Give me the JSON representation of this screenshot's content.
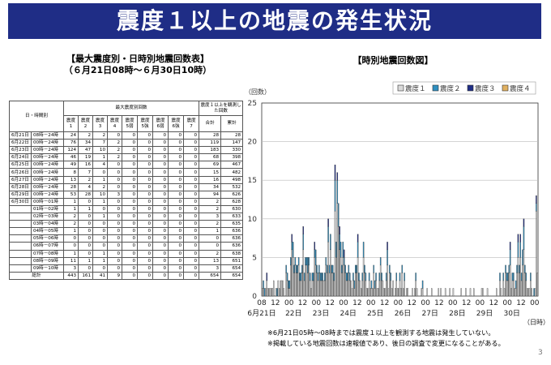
{
  "page": {
    "title": "震度１以上の地震の発生状況",
    "table_heading_line1": "【最大震度別・日時別地震回数表】",
    "table_heading_line2": "（６月21日08時～６月30日10時）",
    "chart_heading": "【時別地震回数図】",
    "notes": [
      "※6月21日05時～08時までは震度１以上を観測する地震は発生していない。",
      "※掲載している地震回数は速報値であり、後日の調査で変更になることがある。"
    ],
    "page_number": "3"
  },
  "table": {
    "col_date_time": "日・時間別",
    "col_group": "最大震度別回数",
    "col_observed": "震度１以上を観測した回数",
    "col_intensity_top": [
      "震度",
      "震度",
      "震度",
      "震度",
      "震度",
      "震度",
      "震度",
      "震度",
      "震度"
    ],
    "col_intensity_bottom": [
      "1",
      "2",
      "3",
      "4",
      "5弱",
      "5強",
      "6弱",
      "6強",
      "7"
    ],
    "col_total": "合計",
    "col_cumulative": "累計",
    "rows": [
      {
        "date": "6月21日",
        "time": "08時－24時",
        "v": [
          "24",
          "2",
          "2",
          "0",
          "0",
          "0",
          "0",
          "0",
          "0"
        ],
        "total": "28",
        "cum": "28"
      },
      {
        "date": "6月22日",
        "time": "00時－24時",
        "v": [
          "76",
          "34",
          "7",
          "2",
          "0",
          "0",
          "0",
          "0",
          "0"
        ],
        "total": "119",
        "cum": "147"
      },
      {
        "date": "6月23日",
        "time": "00時－24時",
        "v": [
          "124",
          "47",
          "10",
          "2",
          "0",
          "0",
          "0",
          "0",
          "0"
        ],
        "total": "183",
        "cum": "330"
      },
      {
        "date": "6月24日",
        "time": "00時－24時",
        "v": [
          "46",
          "19",
          "1",
          "2",
          "0",
          "0",
          "0",
          "0",
          "0"
        ],
        "total": "68",
        "cum": "398"
      },
      {
        "date": "6月25日",
        "time": "00時－24時",
        "v": [
          "49",
          "16",
          "4",
          "0",
          "0",
          "0",
          "0",
          "0",
          "0"
        ],
        "total": "69",
        "cum": "467"
      },
      {
        "date": "6月26日",
        "time": "00時－24時",
        "v": [
          "8",
          "7",
          "0",
          "0",
          "0",
          "0",
          "0",
          "0",
          "0"
        ],
        "total": "15",
        "cum": "482"
      },
      {
        "date": "6月27日",
        "time": "00時－24時",
        "v": [
          "13",
          "2",
          "1",
          "0",
          "0",
          "0",
          "0",
          "0",
          "0"
        ],
        "total": "16",
        "cum": "498"
      },
      {
        "date": "6月28日",
        "time": "00時－24時",
        "v": [
          "28",
          "4",
          "2",
          "0",
          "0",
          "0",
          "0",
          "0",
          "0"
        ],
        "total": "34",
        "cum": "532"
      },
      {
        "date": "6月29日",
        "time": "00時－24時",
        "v": [
          "53",
          "28",
          "10",
          "3",
          "0",
          "0",
          "0",
          "0",
          "0"
        ],
        "total": "94",
        "cum": "626"
      },
      {
        "date": "6月30日",
        "time": "00時－01時",
        "v": [
          "1",
          "0",
          "1",
          "0",
          "0",
          "0",
          "0",
          "0",
          "0"
        ],
        "total": "2",
        "cum": "628"
      },
      {
        "date": "",
        "time": "01時－02時",
        "v": [
          "1",
          "1",
          "0",
          "0",
          "0",
          "0",
          "0",
          "0",
          "0"
        ],
        "total": "2",
        "cum": "630"
      },
      {
        "date": "",
        "time": "02時－03時",
        "v": [
          "2",
          "0",
          "1",
          "0",
          "0",
          "0",
          "0",
          "0",
          "0"
        ],
        "total": "3",
        "cum": "633"
      },
      {
        "date": "",
        "time": "03時－04時",
        "v": [
          "2",
          "0",
          "0",
          "0",
          "0",
          "0",
          "0",
          "0",
          "0"
        ],
        "total": "2",
        "cum": "635"
      },
      {
        "date": "",
        "time": "04時－05時",
        "v": [
          "1",
          "0",
          "0",
          "0",
          "0",
          "0",
          "0",
          "0",
          "0"
        ],
        "total": "1",
        "cum": "636"
      },
      {
        "date": "",
        "time": "05時－06時",
        "v": [
          "0",
          "0",
          "0",
          "0",
          "0",
          "0",
          "0",
          "0",
          "0"
        ],
        "total": "0",
        "cum": "636"
      },
      {
        "date": "",
        "time": "06時－07時",
        "v": [
          "0",
          "0",
          "0",
          "0",
          "0",
          "0",
          "0",
          "0",
          "0"
        ],
        "total": "0",
        "cum": "636"
      },
      {
        "date": "",
        "time": "07時－08時",
        "v": [
          "1",
          "0",
          "1",
          "0",
          "0",
          "0",
          "0",
          "0",
          "0"
        ],
        "total": "2",
        "cum": "638"
      },
      {
        "date": "",
        "time": "08時－09時",
        "v": [
          "11",
          "1",
          "1",
          "0",
          "0",
          "0",
          "0",
          "0",
          "0"
        ],
        "total": "13",
        "cum": "651"
      },
      {
        "date": "",
        "time": "09時－10時",
        "v": [
          "3",
          "0",
          "0",
          "0",
          "0",
          "0",
          "0",
          "0",
          "0"
        ],
        "total": "3",
        "cum": "654"
      }
    ],
    "total_row": {
      "label": "総計",
      "v": [
        "443",
        "161",
        "41",
        "9",
        "0",
        "0",
        "0",
        "0",
        "0"
      ],
      "total": "654",
      "cum": "654"
    }
  },
  "chart_data": {
    "type": "bar",
    "stacked": true,
    "ylabel": "（回数）",
    "xlabel_unit": "（日時）",
    "ylim": [
      0,
      25
    ],
    "yticks": [
      0,
      5,
      10,
      15,
      20,
      25
    ],
    "grid": true,
    "legend_position": "top-right",
    "hour_labels": [
      "08",
      "12",
      "00",
      "12",
      "00",
      "12",
      "00",
      "12",
      "00",
      "12",
      "00",
      "12",
      "00",
      "12",
      "00",
      "12",
      "00",
      "12",
      "00",
      "12",
      "00"
    ],
    "day_labels": [
      "6月21日",
      "22日",
      "23日",
      "24日",
      "25日",
      "26日",
      "27日",
      "28日",
      "29日",
      "30日"
    ],
    "x_start": "6月21日 08時",
    "x_end": "6月30日 10時",
    "series": [
      {
        "name": "震度１",
        "color": "#d9d9d9",
        "values": [
          1,
          1,
          0,
          1,
          2,
          1,
          1,
          1,
          1,
          1,
          2,
          0,
          1,
          0,
          2,
          1,
          2,
          2,
          2,
          1,
          0,
          3,
          2,
          1,
          1,
          4,
          6,
          5,
          3,
          4,
          3,
          3,
          4,
          2,
          2,
          3,
          6,
          2,
          4,
          4,
          3,
          4,
          2,
          1,
          2,
          2,
          5,
          4,
          3,
          2,
          3,
          2,
          2,
          2,
          2,
          2,
          4,
          3,
          7,
          3,
          6,
          3,
          3,
          2,
          11,
          5,
          12,
          9,
          6,
          5,
          3,
          5,
          4,
          3,
          2,
          2,
          3,
          2,
          2,
          1,
          2,
          1,
          3,
          3,
          5,
          2,
          2,
          1,
          2,
          5,
          3,
          2,
          1,
          1,
          2,
          1,
          1,
          1,
          3,
          1,
          2,
          1,
          1,
          2,
          4,
          2,
          2,
          1,
          1,
          2,
          4,
          1,
          3,
          2,
          1,
          2,
          0,
          1,
          2,
          1,
          1,
          2,
          1,
          3,
          1,
          2,
          0,
          1,
          1,
          0,
          0,
          0,
          1,
          0,
          1,
          2,
          1,
          0,
          0,
          0,
          1,
          1,
          0,
          0,
          0,
          1,
          0,
          0,
          0,
          1,
          0,
          0,
          0,
          0,
          0,
          1,
          0,
          1,
          0,
          0,
          0,
          1,
          0,
          0,
          0,
          1,
          0,
          0,
          1,
          0,
          0,
          0,
          0,
          0,
          0,
          1,
          0,
          0,
          0,
          1,
          0,
          0,
          0,
          1,
          0,
          0,
          1,
          0,
          0,
          0,
          0,
          0,
          0,
          1,
          1,
          0,
          0,
          0,
          1,
          0,
          0,
          0,
          0,
          0,
          0,
          0,
          1,
          0,
          0,
          2,
          1,
          0,
          2,
          1,
          3,
          2,
          2,
          3,
          4,
          1,
          2,
          2,
          1,
          1,
          3,
          5,
          3,
          5,
          2,
          4,
          6,
          3,
          2,
          1,
          1,
          1,
          2,
          1,
          0,
          0,
          1,
          11,
          3
        ]
      },
      {
        "name": "震度２",
        "color": "#2f8fc0",
        "values": [
          0,
          1,
          1,
          0,
          0,
          0,
          0,
          0,
          0,
          0,
          0,
          0,
          0,
          1,
          0,
          0,
          0,
          0,
          0,
          0,
          0,
          1,
          1,
          1,
          1,
          1,
          1,
          2,
          1,
          1,
          1,
          1,
          1,
          1,
          1,
          1,
          2,
          1,
          1,
          1,
          2,
          1,
          1,
          0,
          1,
          1,
          1,
          2,
          1,
          1,
          1,
          1,
          1,
          1,
          0,
          1,
          1,
          1,
          2,
          1,
          2,
          1,
          1,
          1,
          4,
          2,
          3,
          3,
          2,
          2,
          1,
          2,
          1,
          1,
          1,
          1,
          1,
          1,
          0,
          0,
          1,
          1,
          1,
          1,
          2,
          1,
          0,
          0,
          1,
          2,
          1,
          1,
          0,
          0,
          1,
          0,
          1,
          0,
          1,
          1,
          1,
          0,
          0,
          1,
          1,
          1,
          0,
          0,
          0,
          1,
          2,
          0,
          1,
          1,
          0,
          0,
          0,
          0,
          1,
          0,
          0,
          1,
          0,
          1,
          0,
          1,
          0,
          0,
          0,
          0,
          0,
          0,
          0,
          0,
          0,
          1,
          0,
          0,
          0,
          0,
          0,
          1,
          0,
          0,
          0,
          0,
          0,
          0,
          0,
          0,
          0,
          0,
          0,
          0,
          0,
          0,
          0,
          0,
          0,
          0,
          0,
          0,
          0,
          0,
          0,
          0,
          0,
          0,
          0,
          0,
          0,
          0,
          0,
          0,
          0,
          0,
          0,
          0,
          0,
          0,
          0,
          0,
          0,
          0,
          0,
          0,
          0,
          0,
          0,
          0,
          0,
          0,
          0,
          0,
          0,
          0,
          0,
          0,
          0,
          0,
          0,
          0,
          0,
          0,
          0,
          0,
          0,
          0,
          0,
          1,
          0,
          0,
          1,
          0,
          1,
          1,
          1,
          1,
          2,
          0,
          1,
          1,
          0,
          1,
          1,
          2,
          1,
          2,
          1,
          2,
          3,
          1,
          1,
          0,
          0,
          0,
          1,
          0,
          0,
          1,
          0,
          1,
          0
        ]
      },
      {
        "name": "震度３",
        "color": "#1f2d86",
        "values": [
          0,
          0,
          0,
          0,
          1,
          0,
          0,
          0,
          0,
          0,
          0,
          0,
          0,
          0,
          0,
          0,
          0,
          0,
          0,
          0,
          0,
          0,
          0,
          0,
          0,
          0,
          1,
          0,
          0,
          0,
          0,
          0,
          0,
          0,
          0,
          0,
          1,
          0,
          0,
          0,
          0,
          0,
          0,
          0,
          0,
          0,
          1,
          0,
          0,
          0,
          0,
          0,
          0,
          0,
          0,
          0,
          0,
          0,
          1,
          0,
          0,
          0,
          0,
          0,
          2,
          0,
          1,
          0,
          1,
          0,
          0,
          0,
          1,
          0,
          0,
          0,
          0,
          0,
          0,
          0,
          0,
          0,
          0,
          0,
          1,
          0,
          0,
          0,
          0,
          0,
          0,
          0,
          0,
          0,
          0,
          0,
          0,
          0,
          0,
          0,
          0,
          0,
          0,
          0,
          0,
          0,
          0,
          0,
          0,
          0,
          1,
          0,
          0,
          0,
          0,
          0,
          0,
          0,
          0,
          0,
          0,
          0,
          0,
          0,
          0,
          0,
          0,
          0,
          0,
          0,
          0,
          0,
          0,
          0,
          0,
          0,
          0,
          0,
          0,
          0,
          0,
          0,
          0,
          0,
          0,
          0,
          0,
          0,
          0,
          0,
          0,
          0,
          0,
          0,
          0,
          0,
          0,
          0,
          0,
          0,
          0,
          0,
          0,
          0,
          0,
          0,
          0,
          0,
          0,
          0,
          0,
          0,
          0,
          0,
          0,
          0,
          0,
          0,
          0,
          0,
          0,
          0,
          0,
          0,
          0,
          0,
          0,
          0,
          0,
          0,
          0,
          0,
          0,
          0,
          0,
          0,
          0,
          0,
          0,
          0,
          0,
          0,
          0,
          0,
          0,
          0,
          0,
          0,
          0,
          0,
          0,
          0,
          0,
          0,
          0,
          0,
          0,
          0,
          1,
          0,
          0,
          0,
          0,
          0,
          0,
          1,
          0,
          1,
          0,
          0,
          1,
          0,
          0,
          0,
          0,
          0,
          0,
          0,
          0,
          0,
          0,
          1,
          0
        ]
      },
      {
        "name": "震度４",
        "color": "#e0b060",
        "values": [
          0,
          0,
          0,
          0,
          0,
          0,
          0,
          0,
          0,
          0,
          0,
          0,
          0,
          0,
          0,
          0,
          0,
          0,
          0,
          0,
          0,
          0,
          0,
          0,
          0,
          0,
          0,
          0,
          0,
          0,
          0,
          0,
          0,
          0,
          0,
          0,
          0,
          0,
          0,
          0,
          0,
          0,
          0,
          0,
          0,
          0,
          0,
          0,
          0,
          0,
          0,
          0,
          0,
          0,
          0,
          0,
          0,
          0,
          0,
          0,
          0,
          0,
          0,
          0,
          0,
          0,
          0,
          0,
          0,
          0,
          0,
          0,
          0,
          0,
          0,
          0,
          0,
          0,
          0,
          0,
          0,
          0,
          0,
          0,
          0,
          0,
          0,
          0,
          0,
          0,
          0,
          0,
          0,
          0,
          0,
          0,
          0,
          0,
          0,
          0,
          0,
          0,
          0,
          0,
          0,
          0,
          0,
          0,
          0,
          0,
          0,
          0,
          0,
          0,
          0,
          0,
          0,
          0,
          0,
          0,
          0,
          0,
          0,
          0,
          0,
          0,
          0,
          0,
          0,
          0,
          0,
          0,
          0,
          0,
          0,
          0,
          0,
          0,
          0,
          0,
          0,
          0,
          0,
          0,
          0,
          0,
          0,
          0,
          0,
          0,
          0,
          0,
          0,
          0,
          0,
          0,
          0,
          0,
          0,
          0,
          0,
          0,
          0,
          0,
          0,
          0,
          0,
          0,
          0,
          0,
          0,
          0,
          0,
          0,
          0,
          0,
          0,
          0,
          0,
          0,
          0,
          0,
          0,
          0,
          0,
          0,
          0,
          0,
          0,
          0,
          0,
          0,
          0,
          0,
          0,
          0,
          0,
          0,
          0,
          0,
          0,
          0,
          0,
          0,
          0,
          0,
          0,
          0,
          0,
          0,
          0,
          0,
          0,
          0,
          0,
          0,
          0,
          0,
          0,
          0,
          0,
          0,
          0,
          0,
          0,
          0,
          0,
          0,
          0,
          0,
          0,
          0,
          0,
          0,
          0,
          0,
          0,
          0,
          0,
          0,
          0,
          0,
          0
        ]
      }
    ]
  }
}
